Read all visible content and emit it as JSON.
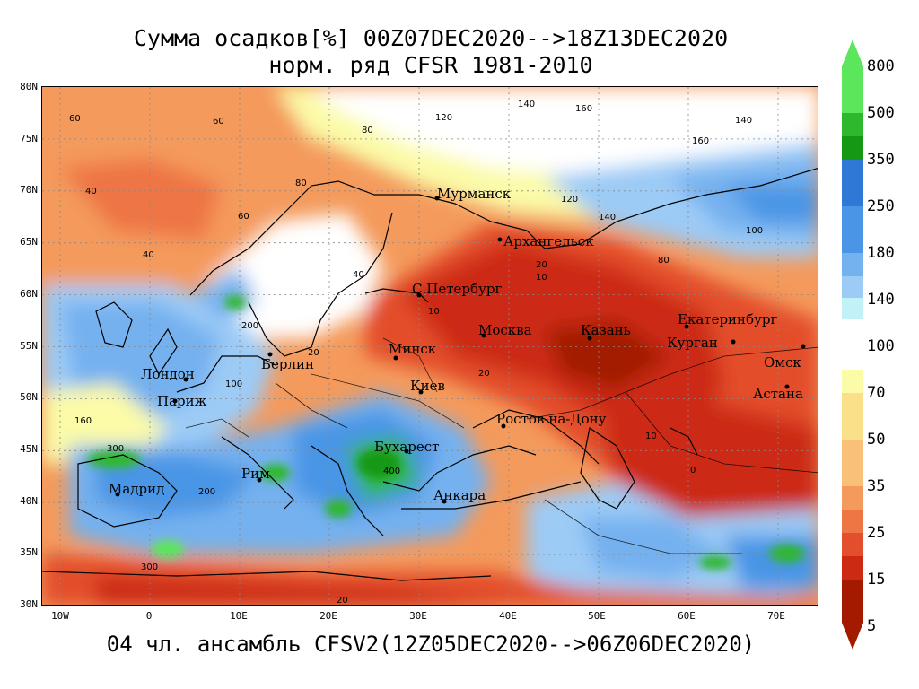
{
  "title_line1": "Сумма осадков[%] 00Z07DEC2020-->18Z13DEC2020",
  "title_line2": "норм. ряд CFSR 1981-2010",
  "bottom_title": "04 чл. ансамбль CFSV2(12Z05DEC2020-->06Z06DEC2020)",
  "lat_labels": [
    "80N",
    "75N",
    "70N",
    "65N",
    "60N",
    "55N",
    "50N",
    "45N",
    "40N",
    "35N",
    "30N"
  ],
  "lon_labels": [
    "10W",
    "0",
    "10E",
    "20E",
    "30E",
    "40E",
    "50E",
    "60E",
    "70E"
  ],
  "colorbar": {
    "upper_labels": [
      "800",
      "500",
      "350",
      "250",
      "180",
      "140"
    ],
    "lower_labels": [
      "100",
      "70",
      "50",
      "35",
      "25",
      "15",
      "5"
    ],
    "upper_colors": [
      "#5ce65c",
      "#2eb82e",
      "#159915",
      "#2f78d6",
      "#4a95e6",
      "#74b1ef",
      "#9ccbf6",
      "#c2f1f8"
    ],
    "lower_colors": [
      "#fbfba8",
      "#fbe08a",
      "#f9c07a",
      "#f49a5c",
      "#ee7544",
      "#e34e2c",
      "#cc2a12",
      "#a31a00"
    ]
  },
  "cities": {
    "murmansk": "Мурманск",
    "arkhangelsk": "Архангельск",
    "spb": "С.Петербург",
    "moscow": "Москва",
    "kazan": "Казань",
    "ekaterinburg": "Екатеринбург",
    "kurgan": "Курган",
    "omsk": "Омск",
    "astana": "Астана",
    "minsk": "Минск",
    "berlin": "Берлин",
    "kiev": "Киев",
    "london": "Лондон",
    "paris": "Париж",
    "rostov": "Ростов-на-Дону",
    "bucharest": "Бухарест",
    "rome": "Рим",
    "madrid": "Мадрид",
    "ankara": "Анкара"
  },
  "contour_values": {
    "v60a": "60",
    "v60b": "60",
    "v60c": "60",
    "v40a": "40",
    "v40b": "40",
    "v40c": "40",
    "v80a": "80",
    "v80b": "80",
    "v120a": "120",
    "v140a": "140",
    "v160a": "160",
    "v120b": "120",
    "v140b": "140",
    "v160b": "160",
    "v100a": "100",
    "v20a": "20",
    "v10a": "10",
    "v10b": "10",
    "v20b": "20",
    "v20c": "20",
    "v200a": "200",
    "v300a": "300",
    "v400a": "400",
    "v300b": "300",
    "v200b": "200",
    "v100b": "100",
    "v0a": "0",
    "v10c": "10",
    "v20d": "20",
    "v80c": "80",
    "v160c": "160",
    "v140c": "140"
  }
}
